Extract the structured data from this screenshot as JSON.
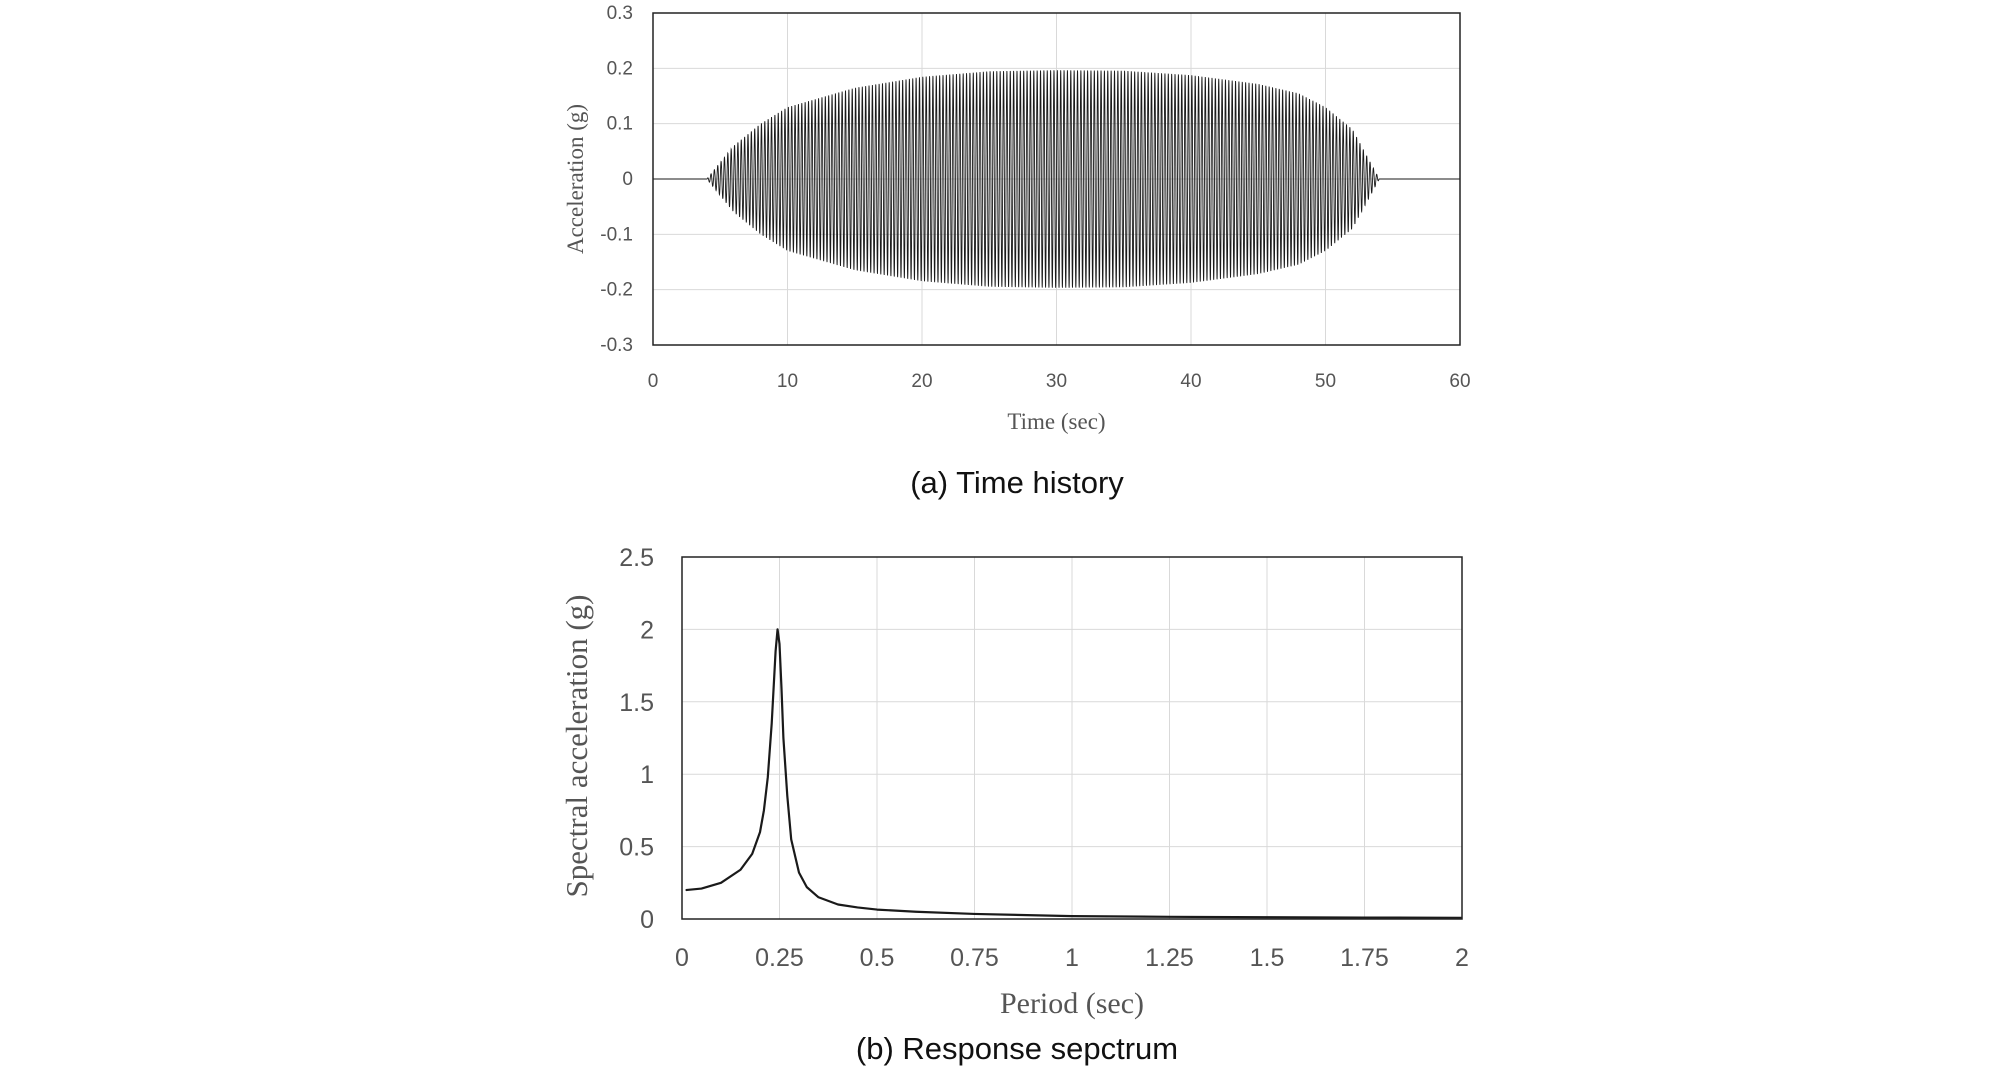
{
  "chart_data": [
    {
      "type": "line",
      "caption": "(a) Time history",
      "xlabel": "Time (sec)",
      "ylabel": "Acceleration (g)",
      "xlim": [
        0,
        60
      ],
      "ylim": [
        -0.3,
        0.3
      ],
      "xticks": [
        "0",
        "10",
        "20",
        "30",
        "40",
        "50",
        "60"
      ],
      "yticks": [
        "0.3",
        "0.2",
        "0.1",
        "0",
        "-0.1",
        "-0.2",
        "-0.3"
      ],
      "grid": true,
      "legend": "none",
      "line_color": "#1a1a1a",
      "signal": {
        "form": "amplitude-modulated sinusoid",
        "frequency_hz": 4,
        "envelope": {
          "t": [
            0,
            4,
            6,
            8,
            10,
            15,
            20,
            25,
            30,
            35,
            40,
            45,
            48,
            50,
            52,
            54,
            60
          ],
          "amplitude": [
            0,
            0,
            0.06,
            0.1,
            0.13,
            0.165,
            0.185,
            0.195,
            0.197,
            0.196,
            0.188,
            0.172,
            0.155,
            0.13,
            0.09,
            0,
            0
          ]
        }
      }
    },
    {
      "type": "line",
      "caption": "(b) Response sepctrum",
      "xlabel": "Period (sec)",
      "ylabel": "Spectral acceleration (g)",
      "xlim": [
        0,
        2
      ],
      "ylim": [
        0,
        2.5
      ],
      "xticks": [
        "0",
        "0.25",
        "0.5",
        "0.75",
        "1",
        "1.25",
        "1.5",
        "1.75",
        "2"
      ],
      "yticks": [
        "2.5",
        "2",
        "1.5",
        "1",
        "0.5",
        "0"
      ],
      "grid": true,
      "legend": "none",
      "line_color": "#1a1a1a",
      "series": [
        {
          "x": [
            0.01,
            0.05,
            0.1,
            0.15,
            0.18,
            0.2,
            0.21,
            0.22,
            0.23,
            0.24,
            0.245,
            0.25,
            0.255,
            0.26,
            0.27,
            0.28,
            0.3,
            0.32,
            0.35,
            0.4,
            0.45,
            0.5,
            0.6,
            0.75,
            1.0,
            1.25,
            1.5,
            1.75,
            2.0
          ],
          "y": [
            0.2,
            0.21,
            0.25,
            0.34,
            0.45,
            0.6,
            0.75,
            0.98,
            1.35,
            1.85,
            2.0,
            1.9,
            1.6,
            1.25,
            0.85,
            0.55,
            0.32,
            0.22,
            0.15,
            0.1,
            0.08,
            0.065,
            0.05,
            0.035,
            0.02,
            0.015,
            0.012,
            0.01,
            0.008
          ]
        }
      ]
    }
  ]
}
